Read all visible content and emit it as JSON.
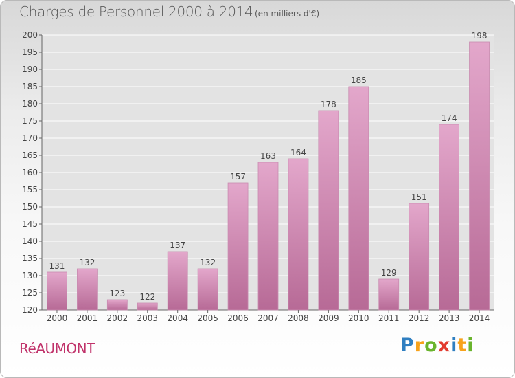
{
  "header": {
    "title": "Charges de Personnel 2000 à 2014",
    "subtitle": "(en milliers d'€)"
  },
  "footer": {
    "commune": "RéAUMONT",
    "logo": "Proxiti"
  },
  "colors": {
    "bar_light": "#e3a7cb",
    "bar_dark": "#b76a96",
    "commune_text": "#c0326a"
  },
  "chart_data": {
    "type": "bar",
    "title": "Charges de Personnel 2000 à 2014",
    "subtitle": "(en milliers d'€)",
    "xlabel": "",
    "ylabel": "",
    "categories": [
      "2000",
      "2001",
      "2002",
      "2003",
      "2004",
      "2005",
      "2006",
      "2007",
      "2008",
      "2009",
      "2010",
      "2011",
      "2012",
      "2013",
      "2014"
    ],
    "values": [
      131,
      132,
      123,
      122,
      137,
      132,
      157,
      163,
      164,
      178,
      185,
      129,
      151,
      174,
      198
    ],
    "ylim": [
      120,
      200
    ],
    "yticks": [
      120,
      125,
      130,
      135,
      140,
      145,
      150,
      155,
      160,
      165,
      170,
      175,
      180,
      185,
      190,
      195,
      200
    ],
    "grid": true,
    "legend": "none"
  }
}
